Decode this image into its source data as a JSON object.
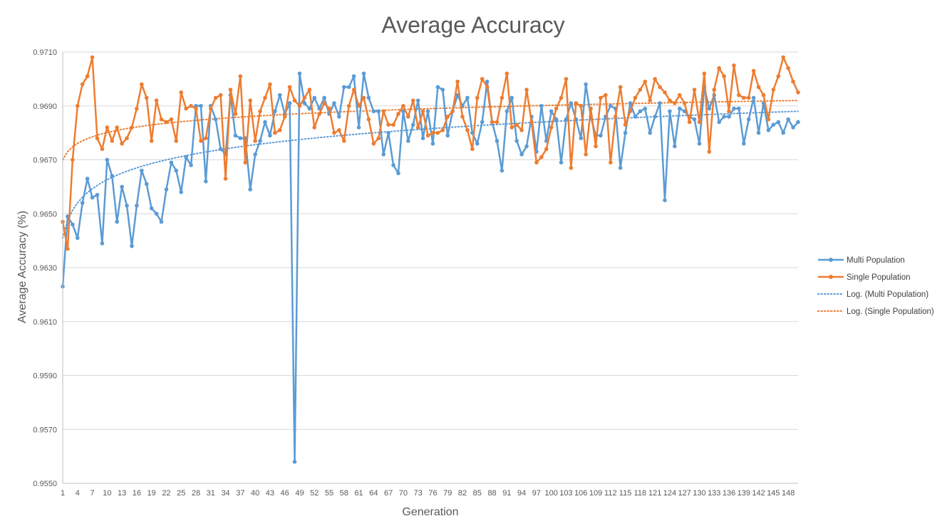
{
  "colors": {
    "multi": "#5B9BD5",
    "single": "#ED7D31",
    "grid": "#D9D9D9",
    "axis": "#BFBFBF",
    "text": "#595959"
  },
  "chart_data": {
    "type": "line",
    "title": "Average Accuracy",
    "xlabel": "Generation",
    "ylabel": "Average Accuracy (%)",
    "ylim": [
      0.955,
      0.971
    ],
    "y_ticks": [
      "0.9550",
      "0.9570",
      "0.9590",
      "0.9610",
      "0.9630",
      "0.9650",
      "0.9670",
      "0.9690",
      "0.9710"
    ],
    "x_tick_labels": [
      "1",
      "4",
      "7",
      "10",
      "13",
      "16",
      "19",
      "22",
      "25",
      "28",
      "31",
      "34",
      "37",
      "40",
      "43",
      "46",
      "49",
      "52",
      "55",
      "58",
      "61",
      "64",
      "67",
      "70",
      "73",
      "76",
      "79",
      "82",
      "85",
      "88",
      "91",
      "94",
      "97",
      "100",
      "103",
      "106",
      "109",
      "112",
      "115",
      "118",
      "121",
      "124",
      "127",
      "130",
      "133",
      "136",
      "139",
      "142",
      "145",
      "148"
    ],
    "x_count": 150,
    "grid": true,
    "legend_position": "right",
    "series": [
      {
        "name": "Multi Population",
        "key": "multi",
        "values": [
          0.9623,
          0.9649,
          0.9646,
          0.9641,
          0.9654,
          0.9663,
          0.9656,
          0.9657,
          0.9639,
          0.967,
          0.9664,
          0.9647,
          0.966,
          0.9653,
          0.9638,
          0.9653,
          0.9666,
          0.9661,
          0.9652,
          0.965,
          0.9647,
          0.9659,
          0.9669,
          0.9666,
          0.9658,
          0.9671,
          0.9668,
          0.969,
          0.969,
          0.9662,
          0.969,
          0.9685,
          0.9674,
          0.9672,
          0.9694,
          0.9679,
          0.9678,
          0.9678,
          0.9659,
          0.9672,
          0.9677,
          0.9684,
          0.9679,
          0.9688,
          0.9694,
          0.9687,
          0.9691,
          0.9558,
          0.9702,
          0.9691,
          0.9689,
          0.9693,
          0.9689,
          0.9693,
          0.9687,
          0.9691,
          0.9686,
          0.9697,
          0.9697,
          0.9701,
          0.9682,
          0.9702,
          0.9693,
          0.9688,
          0.9688,
          0.9672,
          0.968,
          0.9668,
          0.9665,
          0.9688,
          0.9677,
          0.9683,
          0.9692,
          0.9678,
          0.9688,
          0.9676,
          0.9697,
          0.9696,
          0.9679,
          0.9688,
          0.9694,
          0.969,
          0.9693,
          0.968,
          0.9676,
          0.9684,
          0.9699,
          0.9684,
          0.9677,
          0.9666,
          0.9688,
          0.9693,
          0.9677,
          0.9672,
          0.9675,
          0.9686,
          0.9673,
          0.969,
          0.9677,
          0.9688,
          0.9685,
          0.9669,
          0.9685,
          0.9691,
          0.9685,
          0.9678,
          0.9698,
          0.9686,
          0.9679,
          0.9679,
          0.9686,
          0.969,
          0.9689,
          0.9667,
          0.968,
          0.9691,
          0.9686,
          0.9688,
          0.9689,
          0.968,
          0.9686,
          0.9691,
          0.9655,
          0.9688,
          0.9675,
          0.9689,
          0.9688,
          0.9686,
          0.9685,
          0.9676,
          0.9697,
          0.9689,
          0.9694,
          0.9684,
          0.9686,
          0.9686,
          0.9689,
          0.9689,
          0.9676,
          0.9685,
          0.9693,
          0.968,
          0.9691,
          0.9681,
          0.9683,
          0.9684,
          0.968,
          0.9685,
          0.9682,
          0.9684
        ]
      },
      {
        "name": "Single Population",
        "key": "single",
        "values": [
          0.9647,
          0.9637,
          0.967,
          0.969,
          0.9698,
          0.9701,
          0.9708,
          0.9678,
          0.9674,
          0.9682,
          0.9677,
          0.9682,
          0.9676,
          0.9678,
          0.9682,
          0.9689,
          0.9698,
          0.9693,
          0.9677,
          0.9692,
          0.9685,
          0.9684,
          0.9685,
          0.9677,
          0.9695,
          0.9689,
          0.969,
          0.9689,
          0.9677,
          0.9678,
          0.9689,
          0.9693,
          0.9694,
          0.9663,
          0.9696,
          0.9687,
          0.9701,
          0.9669,
          0.9692,
          0.9677,
          0.9688,
          0.9693,
          0.9698,
          0.968,
          0.9681,
          0.9686,
          0.9697,
          0.9692,
          0.969,
          0.9693,
          0.9696,
          0.9682,
          0.9687,
          0.9691,
          0.9689,
          0.968,
          0.9681,
          0.9677,
          0.969,
          0.9696,
          0.969,
          0.9693,
          0.9685,
          0.9676,
          0.9678,
          0.9688,
          0.9683,
          0.9683,
          0.9687,
          0.969,
          0.9686,
          0.9692,
          0.9682,
          0.9688,
          0.9679,
          0.968,
          0.968,
          0.9681,
          0.9686,
          0.9688,
          0.9699,
          0.9686,
          0.9681,
          0.9674,
          0.9693,
          0.97,
          0.9697,
          0.9684,
          0.9684,
          0.9693,
          0.9702,
          0.9682,
          0.9683,
          0.9681,
          0.9696,
          0.9684,
          0.9669,
          0.9671,
          0.9674,
          0.9682,
          0.9689,
          0.9693,
          0.97,
          0.9667,
          0.9691,
          0.969,
          0.9672,
          0.9689,
          0.9675,
          0.9693,
          0.9694,
          0.9669,
          0.9686,
          0.9697,
          0.9683,
          0.9688,
          0.9693,
          0.9696,
          0.9699,
          0.9692,
          0.97,
          0.9697,
          0.9695,
          0.9692,
          0.9691,
          0.9694,
          0.9691,
          0.9684,
          0.9696,
          0.9684,
          0.9702,
          0.9673,
          0.9696,
          0.9704,
          0.9701,
          0.9688,
          0.9705,
          0.9694,
          0.9693,
          0.9693,
          0.9703,
          0.9697,
          0.9694,
          0.9685,
          0.9696,
          0.9701,
          0.9708,
          0.9704,
          0.9699,
          0.9695
        ]
      }
    ],
    "trendlines": [
      {
        "name": "Log. (Multi Population)",
        "key": "multi",
        "type": "logarithmic",
        "start": 0.9641,
        "end": 0.9688
      },
      {
        "name": "Log. (Single Population)",
        "key": "single",
        "type": "logarithmic",
        "start": 0.967,
        "end": 0.9692
      }
    ]
  }
}
